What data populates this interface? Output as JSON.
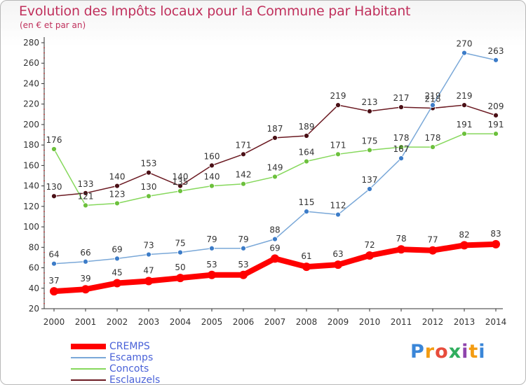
{
  "title": "Evolution des Impôts locaux pour la Commune par Habitant",
  "subtitle": "(en € et par an)",
  "logo": {
    "text": "Proxiti",
    "colors": [
      "#3a86d8",
      "#f39c12",
      "#e74c3c",
      "#2fae5e",
      "#8e44ad",
      "#f39c12",
      "#3a86d8"
    ]
  },
  "chart_data": {
    "type": "line",
    "title": "Evolution des Impôts locaux pour la Commune par Habitant",
    "subtitle": "(en € et par an)",
    "xlabel": "",
    "ylabel": "",
    "x": [
      "2000",
      "2001",
      "2002",
      "2003",
      "2004",
      "2005",
      "2006",
      "2007",
      "2008",
      "2009",
      "2010",
      "2011",
      "2012",
      "2013",
      "2014"
    ],
    "ylim": [
      20,
      280
    ],
    "yticks": [
      20,
      40,
      60,
      80,
      100,
      120,
      140,
      160,
      180,
      200,
      220,
      240,
      260,
      280
    ],
    "grid": false,
    "legend_position": "bottom-left",
    "series": [
      {
        "name": "Esclauzels",
        "color": "#6b1a22",
        "marker": "#4a1016",
        "width": 1.5,
        "values": [
          130,
          133,
          140,
          153,
          140,
          160,
          171,
          187,
          189,
          219,
          213,
          217,
          216,
          219,
          209
        ],
        "labels": [
          "130",
          "133",
          "140",
          "153",
          "140",
          "160",
          "171",
          "187",
          "189",
          "219",
          "213",
          "217",
          "216",
          "219",
          "209"
        ]
      },
      {
        "name": "Concots",
        "color": "#86d85c",
        "marker": "#6cc03c",
        "width": 1.5,
        "values": [
          176,
          121,
          123,
          130,
          135,
          140,
          142,
          149,
          164,
          171,
          175,
          178,
          178,
          191,
          191
        ],
        "labels": [
          "176",
          "121",
          "123",
          "130",
          "135",
          "140",
          "142",
          "149",
          "164",
          "171",
          "175",
          "178",
          "178",
          "191",
          "191"
        ]
      },
      {
        "name": "Escamps",
        "color": "#7aa8d8",
        "marker": "#3c7cc8",
        "width": 1.5,
        "values": [
          64,
          66,
          69,
          73,
          75,
          79,
          79,
          88,
          115,
          112,
          137,
          167,
          219,
          270,
          263
        ],
        "labels": [
          "64",
          "66",
          "69",
          "73",
          "75",
          "79",
          "79",
          "88",
          "115",
          "112",
          "137",
          "167",
          "219",
          "270",
          "263"
        ]
      },
      {
        "name": "CREMPS",
        "color": "#ff0000",
        "marker": "#ff0000",
        "width": 8,
        "values": [
          37,
          39,
          45,
          47,
          50,
          53,
          53,
          69,
          61,
          63,
          72,
          78,
          77,
          82,
          83
        ],
        "labels": [
          "37",
          "39",
          "45",
          "47",
          "50",
          "53",
          "53",
          "69",
          "61",
          "63",
          "72",
          "78",
          "77",
          "82",
          "83"
        ]
      }
    ]
  },
  "legend": [
    {
      "name": "CREMPS",
      "color": "#ff0000",
      "width": 8
    },
    {
      "name": "Escamps",
      "color": "#7aa8d8",
      "width": 2
    },
    {
      "name": "Concots",
      "color": "#86d85c",
      "width": 2
    },
    {
      "name": "Esclauzels",
      "color": "#6b1a22",
      "width": 2
    }
  ]
}
